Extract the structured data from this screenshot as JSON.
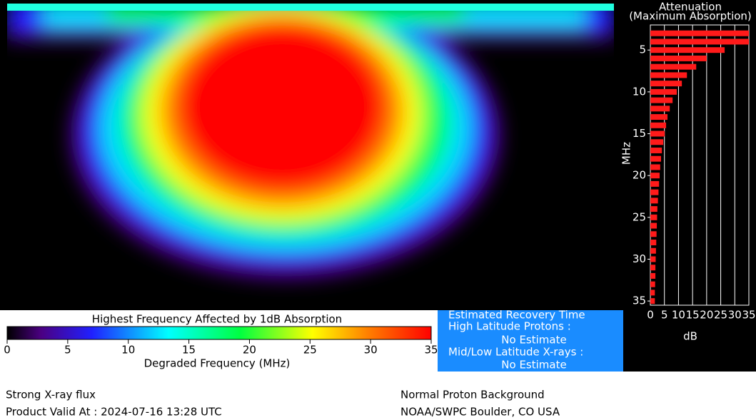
{
  "colorbar": {
    "title": "Highest Frequency Affected by 1dB Absorption",
    "xlabel": "Degraded Frequency (MHz)",
    "xlim": [
      0,
      35
    ],
    "xticks": [
      0,
      5,
      10,
      15,
      20,
      25,
      30,
      35
    ]
  },
  "attenuation_chart": {
    "type": "bar",
    "title": "Attenuation",
    "subtitle": "(Maximum Absorption)",
    "ylabel": "MHz",
    "xlabel": "dB",
    "y": [
      3,
      4,
      5,
      6,
      7,
      8,
      9,
      10,
      11,
      12,
      13,
      14,
      15,
      16,
      17,
      18,
      19,
      20,
      21,
      22,
      23,
      24,
      25,
      26,
      27,
      28,
      29,
      30,
      31,
      32,
      33,
      34,
      35
    ],
    "values": [
      35,
      35,
      26.4,
      20,
      16.3,
      13,
      11.2,
      9.4,
      7.9,
      6.9,
      6.1,
      5.6,
      5.1,
      4.6,
      4.1,
      3.8,
      3.5,
      3.3,
      3.1,
      2.9,
      2.7,
      2.5,
      2.4,
      2.3,
      2.2,
      2.1,
      2,
      1.9,
      1.8,
      1.8,
      1.7,
      1.6,
      1.6
    ],
    "color": "#ff1a1a",
    "xlim": [
      0,
      35
    ],
    "xticks": [
      0,
      5,
      10,
      15,
      20,
      25,
      30,
      35
    ],
    "ylim": [
      2,
      35.5
    ],
    "yticks": [
      5,
      10,
      15,
      20,
      25,
      30,
      35
    ],
    "grid": true
  },
  "recovery": {
    "title": "Estimated Recovery Time",
    "high_label": "High Latitude Protons :",
    "high_value": "No Estimate",
    "mid_label": "Mid/Low Latitude X-rays :",
    "mid_value": "No Estimate"
  },
  "footer": {
    "left": [
      "Strong X-ray flux",
      "Product Valid At : 2024-07-16 13:28 UTC"
    ],
    "right": [
      "Normal Proton Background",
      "NOAA/SWPC Boulder, CO USA"
    ]
  }
}
